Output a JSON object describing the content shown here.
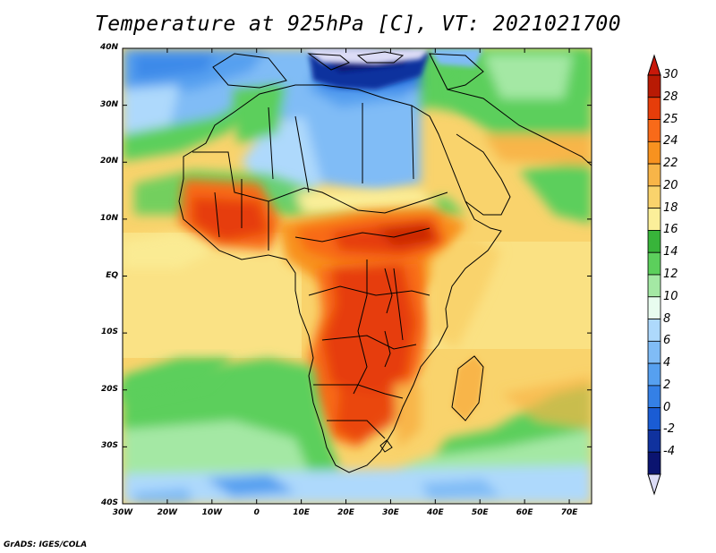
{
  "title": "Temperature at 925hPa [C], VT: 2021021700",
  "credit": "GrADS: IGES/COLA",
  "lat_ticks": [
    "40N",
    "30N",
    "20N",
    "10N",
    "EQ",
    "10S",
    "20S",
    "30S",
    "40S"
  ],
  "lon_ticks": [
    "30W",
    "20W",
    "10W",
    "0",
    "10E",
    "20E",
    "30E",
    "40E",
    "50E",
    "60E",
    "70E"
  ],
  "colorbar": {
    "labels": [
      "30",
      "28",
      "25",
      "24",
      "22",
      "20",
      "18",
      "16",
      "14",
      "12",
      "10",
      "8",
      "6",
      "4",
      "2",
      "0",
      "-2",
      "-4"
    ],
    "colors": [
      "#b81a04",
      "#e63d0a",
      "#f86a19",
      "#f8921f",
      "#f8b548",
      "#f9d36c",
      "#fbef9a",
      "#38b43a",
      "#5ccf5c",
      "#a4e8a4",
      "#e8fcef",
      "#aed9fc",
      "#80bcf6",
      "#56a0f0",
      "#3480e6",
      "#1a5cd4",
      "#10329e",
      "#0b1470"
    ],
    "over_color": "#c8180a",
    "under_color": "#dcdcf6"
  },
  "palette": {
    "sea_base": "#f9d36c",
    "ocean_south": "#5ccf5c",
    "cold_north": "#80bcf6",
    "hot_core": "#e63d0a",
    "border": "#000000"
  }
}
